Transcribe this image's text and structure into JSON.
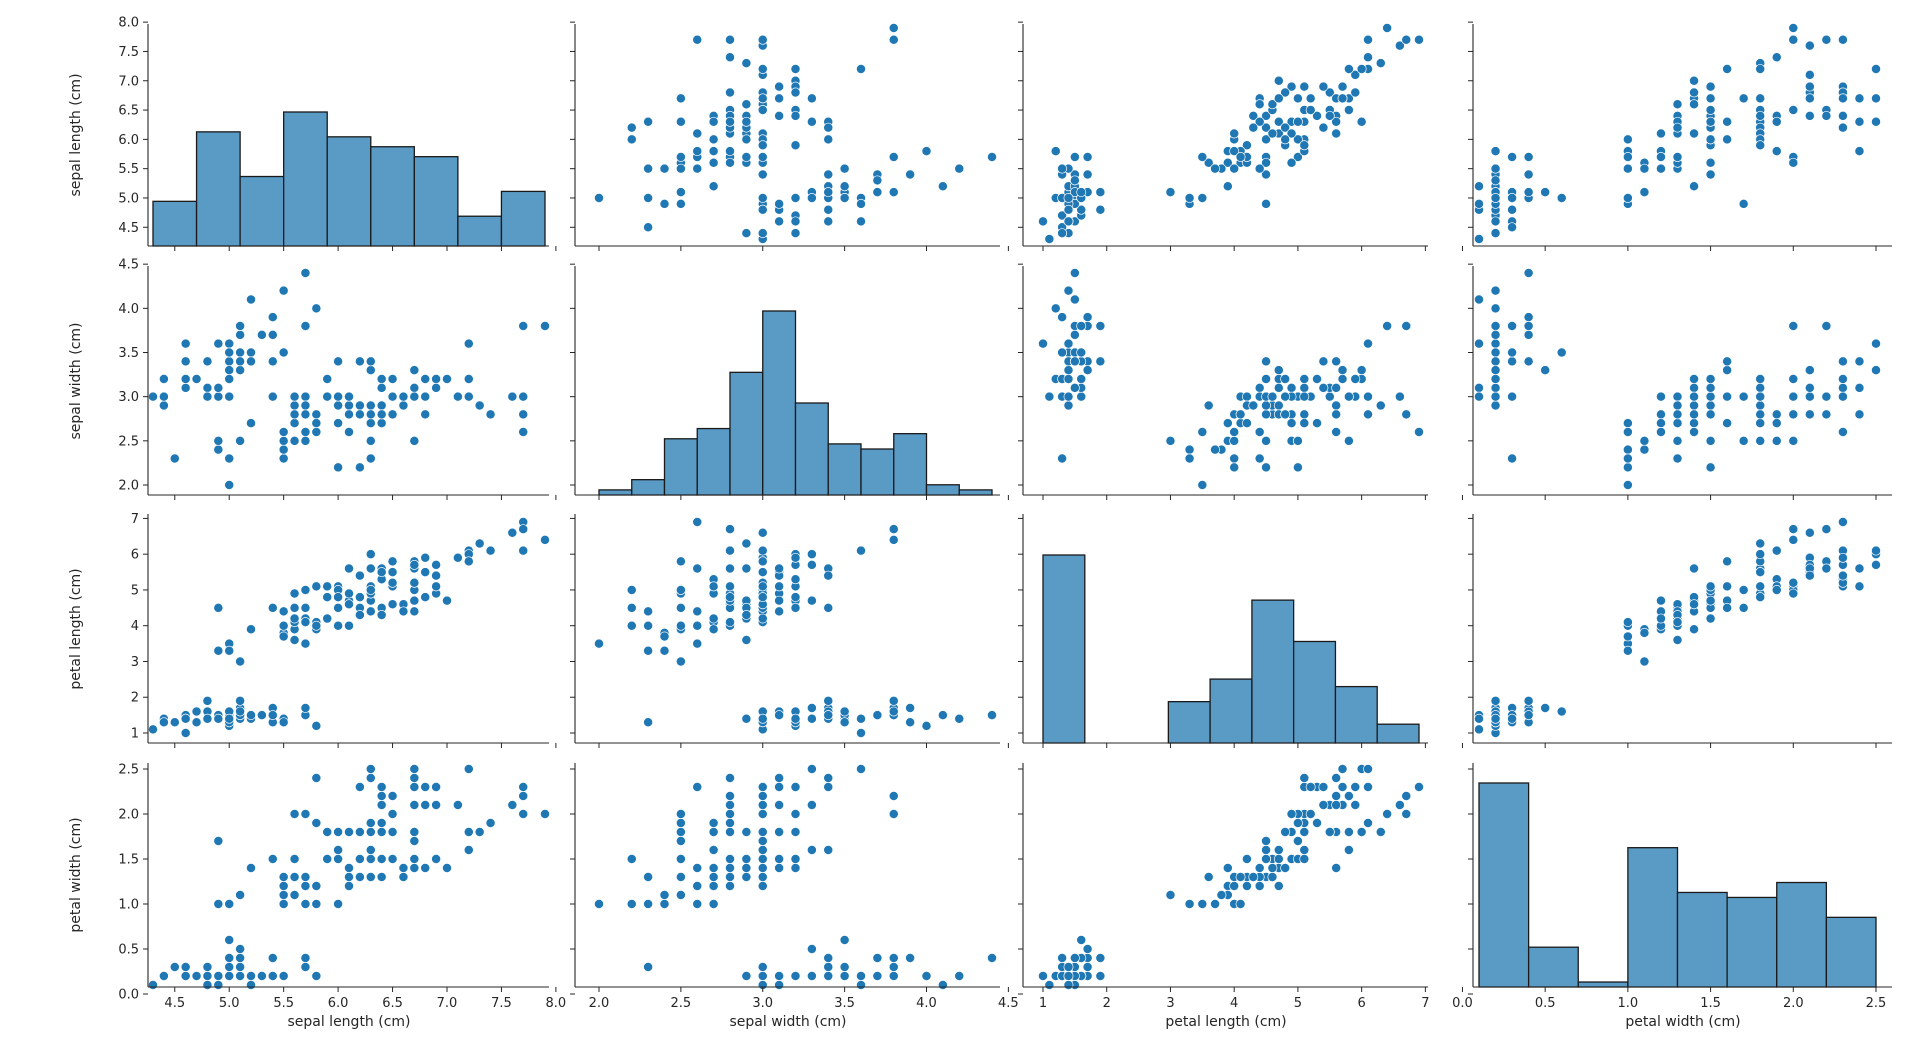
{
  "chart_data": {
    "type": "scatter",
    "kind": "pairplot",
    "variables": [
      "sepal length (cm)",
      "sepal width (cm)",
      "petal length (cm)",
      "petal width (cm)"
    ],
    "colors": {
      "marker": "#1f77b4",
      "hist_fill": "#5a9bc6",
      "edge": "#1a1a1a",
      "axis": "#262626"
    },
    "axes": [
      {
        "min": 4.3,
        "max": 7.9,
        "ticks": [
          4.5,
          5.0,
          5.5,
          6.0,
          6.5,
          7.0,
          7.5,
          8.0
        ],
        "tick_labels": [
          "4.5",
          "5.0",
          "5.5",
          "6.0",
          "6.5",
          "7.0",
          "7.5",
          "8.0"
        ]
      },
      {
        "min": 2.0,
        "max": 4.4,
        "ticks": [
          2.0,
          2.5,
          3.0,
          3.5,
          4.0,
          4.5
        ],
        "tick_labels": [
          "2.0",
          "2.5",
          "3.0",
          "3.5",
          "4.0",
          "4.5"
        ]
      },
      {
        "min": 1.0,
        "max": 6.9,
        "ticks": [
          1,
          2,
          3,
          4,
          5,
          6,
          7
        ],
        "tick_labels": [
          "1",
          "2",
          "3",
          "4",
          "5",
          "6",
          "7"
        ]
      },
      {
        "min": 0.1,
        "max": 2.5,
        "ticks": [
          0.0,
          0.5,
          1.0,
          1.5,
          2.0,
          2.5
        ],
        "tick_labels": [
          "0.0",
          "0.5",
          "1.0",
          "1.5",
          "2.0",
          "2.5"
        ]
      }
    ],
    "histograms": [
      {
        "variable": "sepal length (cm)",
        "bin_edges": [
          4.3,
          4.7,
          5.1,
          5.5,
          5.9,
          6.3,
          6.7,
          7.1,
          7.5,
          7.9
        ],
        "counts": [
          9,
          23,
          14,
          27,
          22,
          20,
          18,
          6,
          11
        ]
      },
      {
        "variable": "sepal width (cm)",
        "bin_edges": [
          2.0,
          2.2,
          2.4,
          2.6,
          2.8,
          3.0,
          3.2,
          3.4,
          3.6,
          3.8,
          4.0,
          4.2,
          4.4
        ],
        "counts": [
          1,
          3,
          11,
          13,
          24,
          36,
          18,
          10,
          9,
          12,
          2,
          1
        ]
      },
      {
        "variable": "petal length (cm)",
        "bin_edges": [
          1.0,
          1.656,
          2.311,
          2.967,
          3.622,
          4.278,
          4.933,
          5.589,
          6.244,
          6.9
        ],
        "counts": [
          50,
          0,
          0,
          11,
          17,
          38,
          27,
          15,
          5
        ]
      },
      {
        "variable": "petal width (cm)",
        "bin_edges": [
          0.1,
          0.4,
          0.7,
          1.0,
          1.3,
          1.6,
          1.9,
          2.2,
          2.5
        ],
        "counts": [
          41,
          8,
          1,
          28,
          19,
          18,
          21,
          14
        ]
      }
    ],
    "records": [
      [
        5.1,
        3.5,
        1.4,
        0.2
      ],
      [
        4.9,
        3.0,
        1.4,
        0.2
      ],
      [
        4.7,
        3.2,
        1.3,
        0.2
      ],
      [
        4.6,
        3.1,
        1.5,
        0.2
      ],
      [
        5.0,
        3.6,
        1.4,
        0.2
      ],
      [
        5.4,
        3.9,
        1.7,
        0.4
      ],
      [
        4.6,
        3.4,
        1.4,
        0.3
      ],
      [
        5.0,
        3.4,
        1.5,
        0.2
      ],
      [
        4.4,
        2.9,
        1.4,
        0.2
      ],
      [
        4.9,
        3.1,
        1.5,
        0.1
      ],
      [
        5.4,
        3.7,
        1.5,
        0.2
      ],
      [
        4.8,
        3.4,
        1.6,
        0.2
      ],
      [
        4.8,
        3.0,
        1.4,
        0.1
      ],
      [
        4.3,
        3.0,
        1.1,
        0.1
      ],
      [
        5.8,
        4.0,
        1.2,
        0.2
      ],
      [
        5.7,
        4.4,
        1.5,
        0.4
      ],
      [
        5.4,
        3.9,
        1.3,
        0.4
      ],
      [
        5.1,
        3.5,
        1.4,
        0.3
      ],
      [
        5.7,
        3.8,
        1.7,
        0.3
      ],
      [
        5.1,
        3.8,
        1.5,
        0.3
      ],
      [
        5.4,
        3.4,
        1.7,
        0.2
      ],
      [
        5.1,
        3.7,
        1.5,
        0.4
      ],
      [
        4.6,
        3.6,
        1.0,
        0.2
      ],
      [
        5.1,
        3.3,
        1.7,
        0.5
      ],
      [
        4.8,
        3.4,
        1.9,
        0.2
      ],
      [
        5.0,
        3.0,
        1.6,
        0.2
      ],
      [
        5.0,
        3.4,
        1.6,
        0.4
      ],
      [
        5.2,
        3.5,
        1.5,
        0.2
      ],
      [
        5.2,
        3.4,
        1.4,
        0.2
      ],
      [
        4.7,
        3.2,
        1.6,
        0.2
      ],
      [
        4.8,
        3.1,
        1.6,
        0.2
      ],
      [
        5.4,
        3.4,
        1.5,
        0.4
      ],
      [
        5.2,
        4.1,
        1.5,
        0.1
      ],
      [
        5.5,
        4.2,
        1.4,
        0.2
      ],
      [
        4.9,
        3.1,
        1.5,
        0.2
      ],
      [
        5.0,
        3.2,
        1.2,
        0.2
      ],
      [
        5.5,
        3.5,
        1.3,
        0.2
      ],
      [
        4.9,
        3.6,
        1.4,
        0.1
      ],
      [
        4.4,
        3.0,
        1.3,
        0.2
      ],
      [
        5.1,
        3.4,
        1.5,
        0.2
      ],
      [
        5.0,
        3.5,
        1.3,
        0.3
      ],
      [
        4.5,
        2.3,
        1.3,
        0.3
      ],
      [
        4.4,
        3.2,
        1.3,
        0.2
      ],
      [
        5.0,
        3.5,
        1.6,
        0.6
      ],
      [
        5.1,
        3.8,
        1.9,
        0.4
      ],
      [
        4.8,
        3.0,
        1.4,
        0.3
      ],
      [
        5.1,
        3.8,
        1.6,
        0.2
      ],
      [
        4.6,
        3.2,
        1.4,
        0.2
      ],
      [
        5.3,
        3.7,
        1.5,
        0.2
      ],
      [
        5.0,
        3.3,
        1.4,
        0.2
      ],
      [
        7.0,
        3.2,
        4.7,
        1.4
      ],
      [
        6.4,
        3.2,
        4.5,
        1.5
      ],
      [
        6.9,
        3.1,
        4.9,
        1.5
      ],
      [
        5.5,
        2.3,
        4.0,
        1.3
      ],
      [
        6.5,
        2.8,
        4.6,
        1.5
      ],
      [
        5.7,
        2.8,
        4.5,
        1.3
      ],
      [
        6.3,
        3.3,
        4.7,
        1.6
      ],
      [
        4.9,
        2.4,
        3.3,
        1.0
      ],
      [
        6.6,
        2.9,
        4.6,
        1.3
      ],
      [
        5.2,
        2.7,
        3.9,
        1.4
      ],
      [
        5.0,
        2.0,
        3.5,
        1.0
      ],
      [
        5.9,
        3.0,
        4.2,
        1.5
      ],
      [
        6.0,
        2.2,
        4.0,
        1.0
      ],
      [
        6.1,
        2.9,
        4.7,
        1.4
      ],
      [
        5.6,
        2.9,
        3.6,
        1.3
      ],
      [
        6.7,
        3.1,
        4.4,
        1.4
      ],
      [
        5.6,
        3.0,
        4.5,
        1.5
      ],
      [
        5.8,
        2.7,
        4.1,
        1.0
      ],
      [
        6.2,
        2.2,
        4.5,
        1.5
      ],
      [
        5.6,
        2.5,
        3.9,
        1.1
      ],
      [
        5.9,
        3.2,
        4.8,
        1.8
      ],
      [
        6.1,
        2.8,
        4.0,
        1.3
      ],
      [
        6.3,
        2.5,
        4.9,
        1.5
      ],
      [
        6.1,
        2.8,
        4.7,
        1.2
      ],
      [
        6.4,
        2.9,
        4.3,
        1.3
      ],
      [
        6.6,
        3.0,
        4.4,
        1.4
      ],
      [
        6.8,
        2.8,
        4.8,
        1.4
      ],
      [
        6.7,
        3.0,
        5.0,
        1.7
      ],
      [
        6.0,
        2.9,
        4.5,
        1.5
      ],
      [
        5.7,
        2.6,
        3.5,
        1.0
      ],
      [
        5.5,
        2.4,
        3.8,
        1.1
      ],
      [
        5.5,
        2.4,
        3.7,
        1.0
      ],
      [
        5.8,
        2.7,
        3.9,
        1.2
      ],
      [
        6.0,
        2.7,
        5.1,
        1.6
      ],
      [
        5.4,
        3.0,
        4.5,
        1.5
      ],
      [
        6.0,
        3.4,
        4.5,
        1.6
      ],
      [
        6.7,
        3.1,
        4.7,
        1.5
      ],
      [
        6.3,
        2.3,
        4.4,
        1.3
      ],
      [
        5.6,
        3.0,
        4.1,
        1.3
      ],
      [
        5.5,
        2.5,
        4.0,
        1.3
      ],
      [
        5.5,
        2.6,
        4.4,
        1.2
      ],
      [
        6.1,
        3.0,
        4.6,
        1.4
      ],
      [
        5.8,
        2.6,
        4.0,
        1.2
      ],
      [
        5.0,
        2.3,
        3.3,
        1.0
      ],
      [
        5.6,
        2.7,
        4.2,
        1.3
      ],
      [
        5.7,
        3.0,
        4.2,
        1.2
      ],
      [
        5.7,
        2.9,
        4.2,
        1.3
      ],
      [
        6.2,
        2.9,
        4.3,
        1.3
      ],
      [
        5.1,
        2.5,
        3.0,
        1.1
      ],
      [
        5.7,
        2.8,
        4.1,
        1.3
      ],
      [
        6.3,
        3.3,
        6.0,
        2.5
      ],
      [
        5.8,
        2.7,
        5.1,
        1.9
      ],
      [
        7.1,
        3.0,
        5.9,
        2.1
      ],
      [
        6.3,
        2.9,
        5.6,
        1.8
      ],
      [
        6.5,
        3.0,
        5.8,
        2.2
      ],
      [
        7.6,
        3.0,
        6.6,
        2.1
      ],
      [
        4.9,
        2.5,
        4.5,
        1.7
      ],
      [
        7.3,
        2.9,
        6.3,
        1.8
      ],
      [
        6.7,
        2.5,
        5.8,
        1.8
      ],
      [
        7.2,
        3.6,
        6.1,
        2.5
      ],
      [
        6.5,
        3.2,
        5.1,
        2.0
      ],
      [
        6.4,
        2.7,
        5.3,
        1.9
      ],
      [
        6.8,
        3.0,
        5.5,
        2.1
      ],
      [
        5.7,
        2.5,
        5.0,
        2.0
      ],
      [
        5.8,
        2.8,
        5.1,
        2.4
      ],
      [
        6.4,
        3.2,
        5.3,
        2.3
      ],
      [
        6.5,
        3.0,
        5.5,
        1.8
      ],
      [
        7.7,
        3.8,
        6.7,
        2.2
      ],
      [
        7.7,
        2.6,
        6.9,
        2.3
      ],
      [
        6.0,
        2.2,
        5.0,
        1.5
      ],
      [
        6.9,
        3.2,
        5.7,
        2.3
      ],
      [
        5.6,
        2.8,
        4.9,
        2.0
      ],
      [
        7.7,
        2.8,
        6.7,
        2.0
      ],
      [
        6.3,
        2.7,
        4.9,
        1.8
      ],
      [
        6.7,
        3.3,
        5.7,
        2.1
      ],
      [
        7.2,
        3.2,
        6.0,
        1.8
      ],
      [
        6.2,
        2.8,
        4.8,
        1.8
      ],
      [
        6.1,
        3.0,
        4.9,
        1.8
      ],
      [
        6.4,
        2.8,
        5.6,
        2.1
      ],
      [
        7.2,
        3.0,
        5.8,
        1.6
      ],
      [
        7.4,
        2.8,
        6.1,
        1.9
      ],
      [
        7.9,
        3.8,
        6.4,
        2.0
      ],
      [
        6.4,
        2.8,
        5.6,
        2.2
      ],
      [
        6.3,
        2.8,
        5.1,
        1.5
      ],
      [
        6.1,
        2.6,
        5.6,
        1.4
      ],
      [
        7.7,
        3.0,
        6.1,
        2.3
      ],
      [
        6.3,
        3.4,
        5.6,
        2.4
      ],
      [
        6.4,
        3.1,
        5.5,
        1.8
      ],
      [
        6.0,
        3.0,
        4.8,
        1.8
      ],
      [
        6.9,
        3.1,
        5.4,
        2.1
      ],
      [
        6.7,
        3.1,
        5.6,
        2.4
      ],
      [
        6.9,
        3.1,
        5.1,
        2.3
      ],
      [
        5.8,
        2.7,
        5.1,
        1.9
      ],
      [
        6.8,
        3.2,
        5.9,
        2.3
      ],
      [
        6.7,
        3.3,
        5.7,
        2.5
      ],
      [
        6.7,
        3.0,
        5.2,
        2.3
      ],
      [
        6.3,
        2.5,
        5.0,
        1.9
      ],
      [
        6.5,
        3.0,
        5.2,
        2.0
      ],
      [
        6.2,
        3.4,
        5.4,
        2.3
      ],
      [
        5.9,
        3.0,
        5.1,
        1.8
      ]
    ]
  }
}
